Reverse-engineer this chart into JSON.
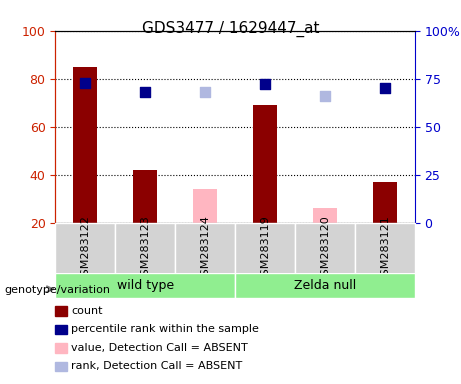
{
  "title": "GDS3477 / 1629447_at",
  "samples": [
    "GSM283122",
    "GSM283123",
    "GSM283124",
    "GSM283119",
    "GSM283120",
    "GSM283121"
  ],
  "groups": [
    "wild type",
    "wild type",
    "wild type",
    "Zelda null",
    "Zelda null",
    "Zelda null"
  ],
  "group_labels": [
    "wild type",
    "Zelda null"
  ],
  "group_colors": [
    "#90ee90",
    "#90ee90"
  ],
  "bar_values": [
    85,
    42,
    null,
    69,
    null,
    37
  ],
  "bar_colors_present": "#8b0000",
  "bar_values_absent": [
    null,
    null,
    34,
    null,
    26,
    null
  ],
  "bar_colors_absent": "#ffb6c1",
  "dot_values_present": [
    73,
    68,
    null,
    72,
    null,
    70
  ],
  "dot_color_present": "#00008b",
  "dot_values_absent": [
    null,
    null,
    68,
    null,
    66,
    null
  ],
  "dot_color_absent": "#b0b8e0",
  "ylim_left": [
    20,
    100
  ],
  "ylim_right": [
    0,
    100
  ],
  "yticks_left": [
    20,
    40,
    60,
    80,
    100
  ],
  "yticks_right": [
    0,
    25,
    50,
    75,
    100
  ],
  "ytick_labels_right": [
    "0",
    "25",
    "50",
    "75",
    "100%"
  ],
  "ytick_labels_left": [
    "20",
    "40",
    "60",
    "80",
    "100"
  ],
  "left_axis_color": "#cc2200",
  "right_axis_color": "#0000cc",
  "grid_dotted": true,
  "legend_items": [
    {
      "label": "count",
      "color": "#8b0000",
      "marker": "s"
    },
    {
      "label": "percentile rank within the sample",
      "color": "#00008b",
      "marker": "s"
    },
    {
      "label": "value, Detection Call = ABSENT",
      "color": "#ffb6c1",
      "marker": "s"
    },
    {
      "label": "rank, Detection Call = ABSENT",
      "color": "#b0b8e0",
      "marker": "s"
    }
  ],
  "genotype_label": "genotype/variation",
  "bar_width": 0.4,
  "dot_marker_size": 60
}
